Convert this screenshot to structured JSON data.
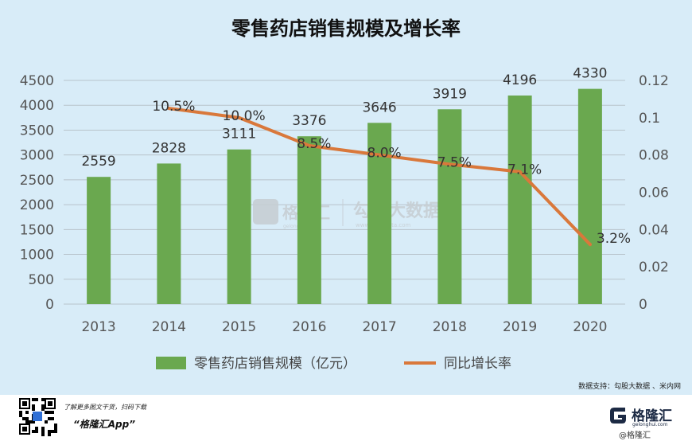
{
  "chart_data": {
    "type": "bar",
    "title": "零售药店销售规模及增长率",
    "categories": [
      "2013",
      "2014",
      "2015",
      "2016",
      "2017",
      "2018",
      "2019",
      "2020"
    ],
    "series": [
      {
        "name": "零售药店销售规模（亿元）",
        "type": "bar",
        "axis": "left",
        "color": "#6aa84f",
        "values": [
          2559,
          2828,
          3111,
          3376,
          3646,
          3919,
          4196,
          4330
        ],
        "labels": [
          "2559",
          "2828",
          "3111",
          "3376",
          "3646",
          "3919",
          "4196",
          "4330"
        ]
      },
      {
        "name": "同比增长率",
        "type": "line",
        "axis": "right",
        "color": "#d9783b",
        "x": [
          "2014",
          "2015",
          "2016",
          "2017",
          "2018",
          "2019",
          "2020"
        ],
        "values": [
          0.105,
          0.1,
          0.085,
          0.08,
          0.075,
          0.071,
          0.032
        ],
        "labels": [
          "10.5%",
          "10.0%",
          "8.5%",
          "8.0%",
          "7.5%",
          "7.1%",
          "3.2%"
        ]
      }
    ],
    "y_left": {
      "ylim": [
        0,
        4500
      ],
      "ticks": [
        "0",
        "500",
        "1000",
        "1500",
        "2000",
        "2500",
        "3000",
        "3500",
        "4000",
        "4500"
      ]
    },
    "y_right": {
      "ylim": [
        0,
        0.12
      ],
      "ticks": [
        "0",
        "0.02",
        "0.04",
        "0.06",
        "0.08",
        "0.1",
        "0.12"
      ]
    },
    "legend_placement": "bottom",
    "grid": true,
    "background": "#d8ecf8"
  },
  "watermark": {
    "brand": "格隆汇",
    "brand_web": "gelonghui.com",
    "partner": "勾股大数据",
    "partner_web": "www.gogudata.com"
  },
  "source_text": "数据支持：勾股大数据 、米内网",
  "footer": {
    "promo_line": "了解更多图文干货，扫码下载",
    "promo_app": "“格隆汇App”",
    "logo_name": "格隆汇",
    "logo_web": "gelonghui.com",
    "logo_tag": "@格隆汇"
  }
}
